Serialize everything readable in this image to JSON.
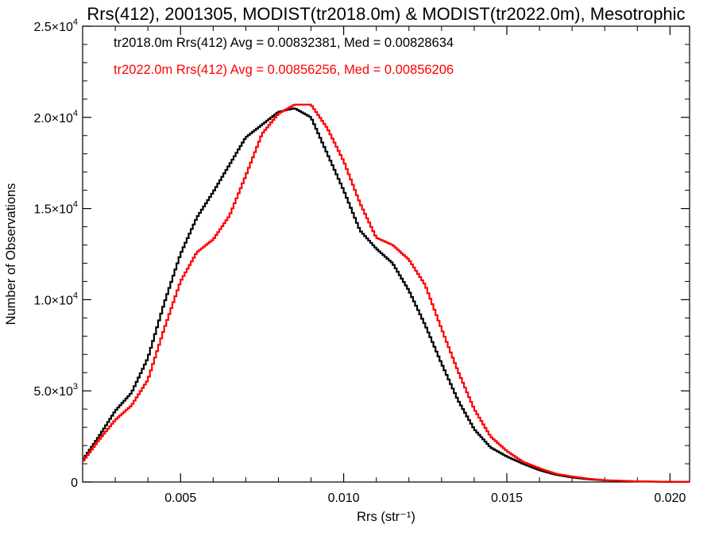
{
  "chart_data": {
    "type": "line",
    "title": "Rrs(412), 2001305, MODIST(tr2018.0m) & MODIST(tr2022.0m), Mesotrophic",
    "xlabel": "Rrs (str⁻¹)",
    "ylabel": "Number of Observations",
    "xlim": [
      0.002,
      0.0206
    ],
    "ylim": [
      0,
      25000
    ],
    "grid": false,
    "legend_placement": "top-left (inside plot)",
    "x_ticks": [
      {
        "value": 0.005,
        "label": "0.005"
      },
      {
        "value": 0.01,
        "label": "0.010"
      },
      {
        "value": 0.015,
        "label": "0.015"
      },
      {
        "value": 0.02,
        "label": "0.020"
      }
    ],
    "y_ticks": [
      {
        "value": 0,
        "mantissa": "0",
        "exponent": ""
      },
      {
        "value": 5000,
        "mantissa": "5.0×10",
        "exponent": "3"
      },
      {
        "value": 10000,
        "mantissa": "1.0×10",
        "exponent": "4"
      },
      {
        "value": 15000,
        "mantissa": "1.5×10",
        "exponent": "4"
      },
      {
        "value": 20000,
        "mantissa": "2.0×10",
        "exponent": "4"
      },
      {
        "value": 25000,
        "mantissa": "2.5×10",
        "exponent": "4"
      }
    ],
    "series": [
      {
        "name": "tr2018.0m",
        "color": "#000000",
        "annotation": "tr2018.0m Rrs(412) Avg = 0.00832381, Med = 0.00828634",
        "x": [
          0.002,
          0.0025,
          0.003,
          0.0035,
          0.004,
          0.0045,
          0.005,
          0.0055,
          0.006,
          0.0065,
          0.007,
          0.0075,
          0.008,
          0.0085,
          0.009,
          0.0095,
          0.01,
          0.0105,
          0.011,
          0.0115,
          0.012,
          0.0125,
          0.013,
          0.0135,
          0.014,
          0.0145,
          0.015,
          0.0155,
          0.016,
          0.0165,
          0.017,
          0.0175,
          0.018,
          0.019,
          0.02,
          0.0206
        ],
        "y": [
          1200,
          2500,
          3900,
          4900,
          6800,
          9800,
          12500,
          14500,
          15900,
          17400,
          18900,
          19600,
          20300,
          20500,
          20000,
          18000,
          16000,
          13800,
          12800,
          12000,
          10500,
          8600,
          6500,
          4500,
          2900,
          1900,
          1400,
          1000,
          650,
          400,
          250,
          150,
          90,
          30,
          10,
          5
        ]
      },
      {
        "name": "tr2022.0m",
        "color": "#ff0000",
        "annotation": "tr2022.0m Rrs(412) Avg = 0.00856256, Med = 0.00856206",
        "x": [
          0.002,
          0.0025,
          0.003,
          0.0035,
          0.004,
          0.0045,
          0.005,
          0.0055,
          0.006,
          0.0065,
          0.007,
          0.0075,
          0.008,
          0.0085,
          0.009,
          0.0095,
          0.01,
          0.0105,
          0.011,
          0.0115,
          0.012,
          0.0125,
          0.013,
          0.0135,
          0.014,
          0.0145,
          0.015,
          0.0155,
          0.016,
          0.0165,
          0.017,
          0.0175,
          0.018,
          0.019,
          0.02,
          0.0206
        ],
        "y": [
          1100,
          2300,
          3400,
          4200,
          5600,
          8400,
          11000,
          12600,
          13300,
          14600,
          16800,
          19100,
          20200,
          20700,
          20700,
          19400,
          17600,
          15300,
          13400,
          13000,
          12200,
          10800,
          8400,
          6100,
          4000,
          2500,
          1700,
          1100,
          750,
          450,
          300,
          180,
          100,
          35,
          12,
          5
        ]
      }
    ]
  }
}
